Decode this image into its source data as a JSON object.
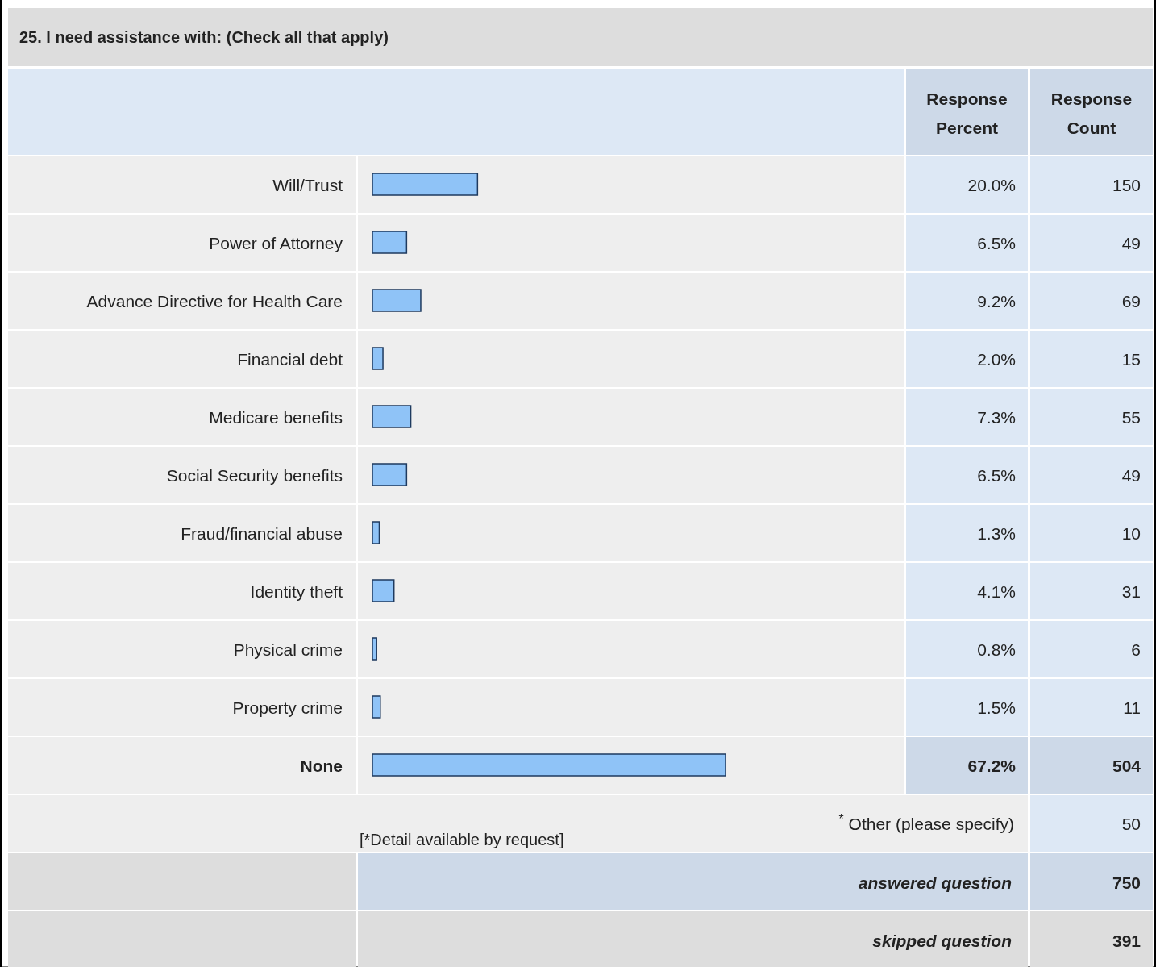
{
  "chart_data": {
    "type": "bar",
    "orientation": "horizontal",
    "title": "25. I need assistance with: (Check all that apply)",
    "categories": [
      "Will/Trust",
      "Power of Attorney",
      "Advance Directive for Health Care",
      "Financial debt",
      "Medicare benefits",
      "Social Security benefits",
      "Fraud/financial abuse",
      "Identity theft",
      "Physical crime",
      "Property crime",
      "None"
    ],
    "values": [
      20.0,
      6.5,
      9.2,
      2.0,
      7.3,
      6.5,
      1.3,
      4.1,
      0.8,
      1.5,
      67.2
    ],
    "value_labels": [
      "20.0%",
      "6.5%",
      "9.2%",
      "2.0%",
      "7.3%",
      "6.5%",
      "1.3%",
      "4.1%",
      "0.8%",
      "1.5%",
      "67.2%"
    ],
    "color": "#8fc3f7",
    "annotations": [
      "150",
      "49",
      "69",
      "15",
      "55",
      "49",
      "10",
      "31",
      "6",
      "11",
      "504",
      "Response Percent",
      "Response Count",
      "$^{*}$ Other (please specify)",
      "50",
      "[*Detail available by request]",
      "answered question",
      "750",
      "skipped question",
      "391"
    ]
  }
}
